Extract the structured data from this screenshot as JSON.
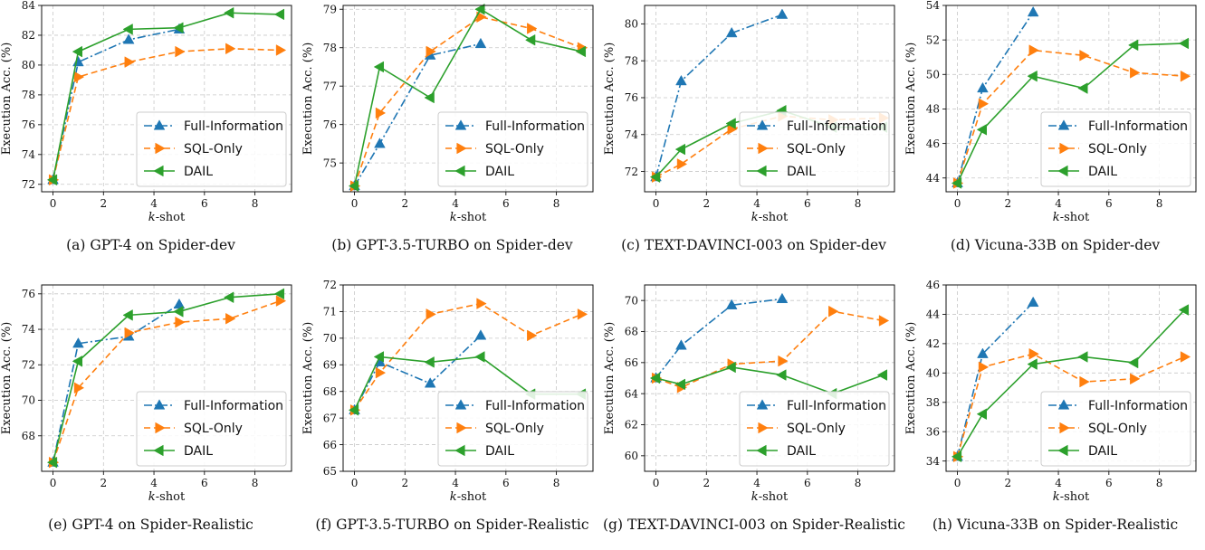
{
  "colors": {
    "full_information": "#1f77b4",
    "sql_only": "#ff7f0e",
    "dail": "#2ca02c",
    "grid": "#c8c8c8"
  },
  "chart_data": [
    {
      "type": "line",
      "caption": "(a)  GPT-4 on Spider-dev",
      "xlabel_italic": "k",
      "xlabel_rest": "-shot",
      "ylabel": "Execution Acc. (%)",
      "xlim": [
        -0.45,
        9.45
      ],
      "ylim": [
        71.5,
        84
      ],
      "xticks": [
        0,
        2,
        4,
        6,
        8
      ],
      "yticks": [
        72,
        74,
        76,
        78,
        80,
        82,
        84
      ],
      "grid": true,
      "legend": "lower-right",
      "series": [
        {
          "name": "Full-Information",
          "marker": "triangle-up",
          "dash": "dashdot",
          "x": [
            0,
            1,
            3,
            5
          ],
          "y": [
            72.3,
            80.2,
            81.7,
            82.4
          ]
        },
        {
          "name": "SQL-Only",
          "marker": "triangle-right",
          "dash": "dashed",
          "x": [
            0,
            1,
            3,
            5,
            7,
            9
          ],
          "y": [
            72.3,
            79.2,
            80.2,
            80.9,
            81.1,
            81.0
          ]
        },
        {
          "name": "DAIL",
          "marker": "triangle-left",
          "dash": "solid",
          "x": [
            0,
            1,
            3,
            5,
            7,
            9
          ],
          "y": [
            72.3,
            80.9,
            82.4,
            82.5,
            83.5,
            83.4
          ]
        }
      ]
    },
    {
      "type": "line",
      "caption": "(b)  GPT-3.5-TURBO on Spider-dev",
      "xlabel_italic": "k",
      "xlabel_rest": "-shot",
      "ylabel": "Execution Acc. (%)",
      "xlim": [
        -0.45,
        9.45
      ],
      "ylim": [
        74.25,
        79.1
      ],
      "xticks": [
        0,
        2,
        4,
        6,
        8
      ],
      "yticks": [
        75,
        76,
        77,
        78,
        79
      ],
      "grid": true,
      "legend": "lower-right",
      "series": [
        {
          "name": "Full-Information",
          "marker": "triangle-up",
          "dash": "dashdot",
          "x": [
            0,
            1,
            3,
            5
          ],
          "y": [
            74.4,
            75.5,
            77.8,
            78.1
          ]
        },
        {
          "name": "SQL-Only",
          "marker": "triangle-right",
          "dash": "dashed",
          "x": [
            0,
            1,
            3,
            5,
            7,
            9
          ],
          "y": [
            74.4,
            76.3,
            77.9,
            78.8,
            78.5,
            78.0
          ]
        },
        {
          "name": "DAIL",
          "marker": "triangle-left",
          "dash": "solid",
          "x": [
            0,
            1,
            3,
            5,
            7,
            9
          ],
          "y": [
            74.4,
            77.5,
            76.7,
            79.0,
            78.2,
            77.9
          ]
        }
      ]
    },
    {
      "type": "line",
      "caption": "(c)  TEXT-DAVINCI-003 on Spider-dev",
      "xlabel_italic": "k",
      "xlabel_rest": "-shot",
      "ylabel": "Execution Acc. (%)",
      "xlim": [
        -0.45,
        9.45
      ],
      "ylim": [
        70.9,
        81.0
      ],
      "xticks": [
        0,
        2,
        4,
        6,
        8
      ],
      "yticks": [
        72,
        74,
        76,
        78,
        80
      ],
      "grid": true,
      "legend": "lower-right",
      "series": [
        {
          "name": "Full-Information",
          "marker": "triangle-up",
          "dash": "dashdot",
          "x": [
            0,
            1,
            3,
            5
          ],
          "y": [
            71.7,
            76.9,
            79.5,
            80.5
          ]
        },
        {
          "name": "SQL-Only",
          "marker": "triangle-right",
          "dash": "dashed",
          "x": [
            0,
            1,
            3,
            5,
            7,
            9
          ],
          "y": [
            71.7,
            72.4,
            74.3,
            75.0,
            74.8,
            74.9
          ]
        },
        {
          "name": "DAIL",
          "marker": "triangle-left",
          "dash": "solid",
          "x": [
            0,
            1,
            3,
            5,
            7,
            9
          ],
          "y": [
            71.7,
            73.2,
            74.6,
            75.3,
            74.4,
            74.4
          ]
        }
      ]
    },
    {
      "type": "line",
      "caption": "(d)  Vicuna-33B on Spider-dev",
      "xlabel_italic": "k",
      "xlabel_rest": "-shot",
      "ylabel": "Execution Acc. (%)",
      "xlim": [
        -0.45,
        9.45
      ],
      "ylim": [
        43.2,
        54.0
      ],
      "xticks": [
        0,
        2,
        4,
        6,
        8
      ],
      "yticks": [
        44,
        46,
        48,
        50,
        52,
        54
      ],
      "grid": true,
      "legend": "lower-right",
      "series": [
        {
          "name": "Full-Information",
          "marker": "triangle-up",
          "dash": "dashdot",
          "x": [
            0,
            1,
            3
          ],
          "y": [
            43.7,
            49.2,
            53.6
          ]
        },
        {
          "name": "SQL-Only",
          "marker": "triangle-right",
          "dash": "dashed",
          "x": [
            0,
            1,
            3,
            5,
            7,
            9
          ],
          "y": [
            43.7,
            48.3,
            51.4,
            51.1,
            50.1,
            49.9
          ]
        },
        {
          "name": "DAIL",
          "marker": "triangle-left",
          "dash": "solid",
          "x": [
            0,
            1,
            3,
            5,
            7,
            9
          ],
          "y": [
            43.7,
            46.8,
            49.9,
            49.2,
            51.7,
            51.8
          ]
        }
      ]
    },
    {
      "type": "line",
      "caption": "(e)  GPT-4 on Spider-Realistic",
      "xlabel_italic": "k",
      "xlabel_rest": "-shot",
      "ylabel": "Execution Acc. (%)",
      "xlim": [
        -0.45,
        9.45
      ],
      "ylim": [
        66.0,
        76.5
      ],
      "xticks": [
        0,
        2,
        4,
        6,
        8
      ],
      "yticks": [
        68,
        70,
        72,
        74,
        76
      ],
      "grid": true,
      "legend": "lower-right",
      "series": [
        {
          "name": "Full-Information",
          "marker": "triangle-up",
          "dash": "dashdot",
          "x": [
            0,
            1,
            3,
            5
          ],
          "y": [
            66.5,
            73.2,
            73.6,
            75.4
          ]
        },
        {
          "name": "SQL-Only",
          "marker": "triangle-right",
          "dash": "dashed",
          "x": [
            0,
            1,
            3,
            5,
            7,
            9
          ],
          "y": [
            66.5,
            70.7,
            73.8,
            74.4,
            74.6,
            75.6
          ]
        },
        {
          "name": "DAIL",
          "marker": "triangle-left",
          "dash": "solid",
          "x": [
            0,
            1,
            3,
            5,
            7,
            9
          ],
          "y": [
            66.5,
            72.2,
            74.8,
            75.0,
            75.8,
            76.0
          ]
        }
      ]
    },
    {
      "type": "line",
      "caption": "(f)  GPT-3.5-TURBO on Spider-Realistic",
      "xlabel_italic": "k",
      "xlabel_rest": "-shot",
      "ylabel": "Execution Acc. (%)",
      "xlim": [
        -0.45,
        9.45
      ],
      "ylim": [
        65.0,
        72.0
      ],
      "xticks": [
        0,
        2,
        4,
        6,
        8
      ],
      "yticks": [
        65,
        66,
        67,
        68,
        69,
        70,
        71,
        72
      ],
      "grid": true,
      "legend": "lower-right",
      "series": [
        {
          "name": "Full-Information",
          "marker": "triangle-up",
          "dash": "dashdot",
          "x": [
            0,
            1,
            3,
            5
          ],
          "y": [
            67.3,
            69.1,
            68.3,
            70.1
          ]
        },
        {
          "name": "SQL-Only",
          "marker": "triangle-right",
          "dash": "dashed",
          "x": [
            0,
            1,
            3,
            5,
            7,
            9
          ],
          "y": [
            67.3,
            68.7,
            70.9,
            71.3,
            70.1,
            70.9
          ]
        },
        {
          "name": "DAIL",
          "marker": "triangle-left",
          "dash": "solid",
          "x": [
            0,
            1,
            3,
            5,
            7,
            9
          ],
          "y": [
            67.3,
            69.3,
            69.1,
            69.3,
            67.9,
            67.9
          ]
        }
      ]
    },
    {
      "type": "line",
      "caption": "(g)  TEXT-DAVINCI-003 on Spider-Realistic",
      "xlabel_italic": "k",
      "xlabel_rest": "-shot",
      "ylabel": "Execution Acc. (%)",
      "xlim": [
        -0.45,
        9.45
      ],
      "ylim": [
        59.0,
        71.0
      ],
      "xticks": [
        0,
        2,
        4,
        6,
        8
      ],
      "yticks": [
        60,
        62,
        64,
        66,
        68,
        70
      ],
      "grid": true,
      "legend": "lower-right",
      "series": [
        {
          "name": "Full-Information",
          "marker": "triangle-up",
          "dash": "dashdot",
          "x": [
            0,
            1,
            3,
            5
          ],
          "y": [
            65.0,
            67.1,
            69.7,
            70.1
          ]
        },
        {
          "name": "SQL-Only",
          "marker": "triangle-right",
          "dash": "dashed",
          "x": [
            0,
            1,
            3,
            5,
            7,
            9
          ],
          "y": [
            65.0,
            64.4,
            65.9,
            66.1,
            69.3,
            68.7
          ]
        },
        {
          "name": "DAIL",
          "marker": "triangle-left",
          "dash": "solid",
          "x": [
            0,
            1,
            3,
            5,
            7,
            9
          ],
          "y": [
            65.0,
            64.6,
            65.7,
            65.2,
            64.0,
            65.2
          ]
        }
      ]
    },
    {
      "type": "line",
      "caption": "(h)  Vicuna-33B on Spider-Realistic",
      "xlabel_italic": "k",
      "xlabel_rest": "-shot",
      "ylabel": "Execution Acc. (%)",
      "xlim": [
        -0.45,
        9.45
      ],
      "ylim": [
        33.3,
        46.0
      ],
      "xticks": [
        0,
        2,
        4,
        6,
        8
      ],
      "yticks": [
        34,
        36,
        38,
        40,
        42,
        44,
        46
      ],
      "grid": true,
      "legend": "lower-right",
      "series": [
        {
          "name": "Full-Information",
          "marker": "triangle-up",
          "dash": "dashdot",
          "x": [
            0,
            1,
            3
          ],
          "y": [
            34.3,
            41.3,
            44.8
          ]
        },
        {
          "name": "SQL-Only",
          "marker": "triangle-right",
          "dash": "dashed",
          "x": [
            0,
            1,
            3,
            5,
            7,
            9
          ],
          "y": [
            34.3,
            40.4,
            41.3,
            39.4,
            39.6,
            41.1
          ]
        },
        {
          "name": "DAIL",
          "marker": "triangle-left",
          "dash": "solid",
          "x": [
            0,
            1,
            3,
            5,
            7,
            9
          ],
          "y": [
            34.3,
            37.2,
            40.6,
            41.1,
            40.7,
            44.3
          ]
        }
      ]
    }
  ]
}
